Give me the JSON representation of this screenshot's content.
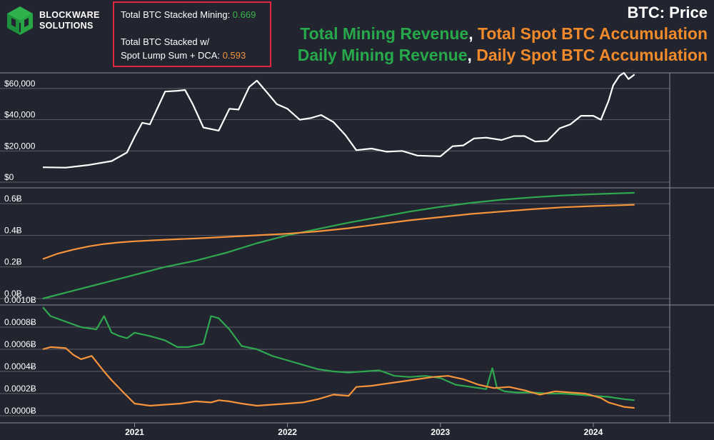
{
  "brand": {
    "line1": "BLOCKWARE",
    "line2": "SOLUTIONS"
  },
  "stats": {
    "mining_label": "Total BTC Stacked Mining: ",
    "mining_value": "0.669",
    "dca_label_1": "Total BTC Stacked w/",
    "dca_label_2": "Spot Lump Sum + DCA: ",
    "dca_value": "0.593"
  },
  "titles": {
    "main": "BTC: Price",
    "line2_green": "Total Mining Revenue",
    "line2_orange": "Total Spot BTC Accumulation",
    "line3_green": "Daily Mining Revenue",
    "line3_orange": "Daily Spot BTC Accumulation",
    "separator": ", "
  },
  "colors": {
    "background": "#22252f",
    "grid": "#8b8e98",
    "price": "#ffffff",
    "mining": "#2fa84f",
    "spot": "#f7943b",
    "border_box": "#e3263f"
  },
  "chart_data": [
    {
      "type": "line",
      "title": "BTC: Price",
      "x_ticks": [
        "2021",
        "2022",
        "2023",
        "2024"
      ],
      "y_ticks": [
        "$0",
        "$20,000",
        "$40,000",
        "$60,000"
      ],
      "ylim": [
        0,
        70000
      ],
      "series": [
        {
          "name": "BTC: Price",
          "x": [
            2020.4,
            2020.55,
            2020.7,
            2020.85,
            2020.95,
            2021.0,
            2021.05,
            2021.1,
            2021.2,
            2021.28,
            2021.33,
            2021.38,
            2021.45,
            2021.55,
            2021.62,
            2021.68,
            2021.75,
            2021.8,
            2021.87,
            2021.93,
            2022.0,
            2022.08,
            2022.15,
            2022.22,
            2022.3,
            2022.38,
            2022.45,
            2022.55,
            2022.65,
            2022.75,
            2022.85,
            2022.92,
            2023.0,
            2023.08,
            2023.15,
            2023.22,
            2023.3,
            2023.4,
            2023.48,
            2023.55,
            2023.62,
            2023.7,
            2023.78,
            2023.85,
            2023.92,
            2024.0,
            2024.05,
            2024.1,
            2024.13,
            2024.17,
            2024.2,
            2024.23,
            2024.27
          ],
          "values": [
            9500,
            9300,
            11000,
            13500,
            19000,
            29000,
            38000,
            37000,
            58000,
            58500,
            59000,
            50000,
            35000,
            33000,
            47000,
            46500,
            61000,
            65000,
            57000,
            50000,
            47000,
            40000,
            41000,
            43000,
            38500,
            30000,
            20500,
            21500,
            19500,
            20000,
            17000,
            16800,
            16500,
            23000,
            23500,
            28000,
            28500,
            27000,
            29500,
            29500,
            26000,
            26500,
            34500,
            37000,
            42500,
            42500,
            40000,
            52000,
            62000,
            68000,
            70000,
            66000,
            69000
          ]
        }
      ]
    },
    {
      "type": "line",
      "title": "Total Mining Revenue, Total Spot BTC Accumulation",
      "x_ticks": [
        "2021",
        "2022",
        "2023",
        "2024"
      ],
      "y_ticks": [
        "0.0Ƀ",
        "0.2Ƀ",
        "0.4Ƀ",
        "0.6Ƀ"
      ],
      "ylim": [
        0,
        0.7
      ],
      "series": [
        {
          "name": "Total Mining Revenue",
          "x": [
            2020.4,
            2020.6,
            2020.8,
            2021.0,
            2021.2,
            2021.4,
            2021.6,
            2021.8,
            2022.0,
            2022.2,
            2022.4,
            2022.6,
            2022.8,
            2023.0,
            2023.2,
            2023.4,
            2023.6,
            2023.8,
            2024.0,
            2024.27
          ],
          "values": [
            0.0,
            0.05,
            0.1,
            0.15,
            0.2,
            0.24,
            0.29,
            0.35,
            0.4,
            0.44,
            0.48,
            0.515,
            0.55,
            0.58,
            0.605,
            0.625,
            0.64,
            0.652,
            0.66,
            0.669
          ]
        },
        {
          "name": "Total Spot BTC Accumulation",
          "x": [
            2020.4,
            2020.5,
            2020.6,
            2020.7,
            2020.8,
            2020.9,
            2021.0,
            2021.2,
            2021.4,
            2021.6,
            2021.8,
            2022.0,
            2022.2,
            2022.4,
            2022.6,
            2022.8,
            2023.0,
            2023.2,
            2023.4,
            2023.6,
            2023.8,
            2024.0,
            2024.27
          ],
          "values": [
            0.25,
            0.285,
            0.31,
            0.33,
            0.345,
            0.355,
            0.362,
            0.372,
            0.38,
            0.39,
            0.4,
            0.41,
            0.425,
            0.445,
            0.47,
            0.495,
            0.515,
            0.535,
            0.55,
            0.565,
            0.577,
            0.585,
            0.593
          ]
        }
      ]
    },
    {
      "type": "line",
      "title": "Daily Mining Revenue, Daily Spot BTC Accumulation",
      "x_ticks": [
        "2021",
        "2022",
        "2023",
        "2024"
      ],
      "y_ticks": [
        "0.0000Ƀ",
        "0.0002Ƀ",
        "0.0004Ƀ",
        "0.0006Ƀ",
        "0.0008Ƀ",
        "0.0010Ƀ"
      ],
      "ylim": [
        0,
        0.001
      ],
      "series": [
        {
          "name": "Daily Mining Revenue",
          "x": [
            2020.4,
            2020.45,
            2020.55,
            2020.65,
            2020.75,
            2020.8,
            2020.85,
            2020.9,
            2020.95,
            2021.0,
            2021.1,
            2021.2,
            2021.28,
            2021.35,
            2021.45,
            2021.5,
            2021.55,
            2021.62,
            2021.7,
            2021.8,
            2021.9,
            2022.0,
            2022.1,
            2022.2,
            2022.3,
            2022.4,
            2022.5,
            2022.6,
            2022.7,
            2022.8,
            2022.9,
            2023.0,
            2023.1,
            2023.2,
            2023.3,
            2023.34,
            2023.37,
            2023.42,
            2023.5,
            2023.6,
            2023.7,
            2023.8,
            2023.9,
            2024.0,
            2024.1,
            2024.2,
            2024.27
          ],
          "values": [
            0.00098,
            0.0009,
            0.00085,
            0.0008,
            0.00078,
            0.0009,
            0.00075,
            0.00072,
            0.0007,
            0.00075,
            0.00072,
            0.00068,
            0.00062,
            0.00062,
            0.00065,
            0.0009,
            0.00088,
            0.00078,
            0.00063,
            0.0006,
            0.00054,
            0.0005,
            0.00046,
            0.00042,
            0.0004,
            0.00039,
            0.0004,
            0.00041,
            0.00036,
            0.00035,
            0.00036,
            0.00034,
            0.00028,
            0.00026,
            0.00024,
            0.00043,
            0.00025,
            0.00022,
            0.00021,
            0.00021,
            0.0002,
            0.0002,
            0.00019,
            0.00018,
            0.00017,
            0.00015,
            0.00014
          ]
        },
        {
          "name": "Daily Spot BTC Accumulation",
          "x": [
            2020.4,
            2020.45,
            2020.55,
            2020.6,
            2020.65,
            2020.72,
            2020.8,
            2020.85,
            2020.92,
            2021.0,
            2021.1,
            2021.2,
            2021.3,
            2021.4,
            2021.5,
            2021.55,
            2021.62,
            2021.7,
            2021.8,
            2021.9,
            2022.0,
            2022.1,
            2022.2,
            2022.3,
            2022.4,
            2022.45,
            2022.55,
            2022.65,
            2022.75,
            2022.85,
            2022.95,
            2023.05,
            2023.15,
            2023.25,
            2023.35,
            2023.45,
            2023.55,
            2023.65,
            2023.75,
            2023.85,
            2023.95,
            2024.05,
            2024.1,
            2024.15,
            2024.2,
            2024.27
          ],
          "values": [
            0.0006,
            0.00062,
            0.00061,
            0.00055,
            0.00051,
            0.00054,
            0.0004,
            0.00032,
            0.00022,
            0.00011,
            9e-05,
            0.0001,
            0.00011,
            0.00013,
            0.00012,
            0.00014,
            0.00013,
            0.00011,
            9e-05,
            0.0001,
            0.00011,
            0.00012,
            0.00015,
            0.00019,
            0.00018,
            0.00026,
            0.00027,
            0.00029,
            0.00031,
            0.00033,
            0.00035,
            0.00036,
            0.00033,
            0.00028,
            0.00025,
            0.00026,
            0.00023,
            0.00019,
            0.00022,
            0.00021,
            0.0002,
            0.00016,
            0.00012,
            0.0001,
            8e-05,
            7e-05
          ]
        }
      ]
    }
  ]
}
